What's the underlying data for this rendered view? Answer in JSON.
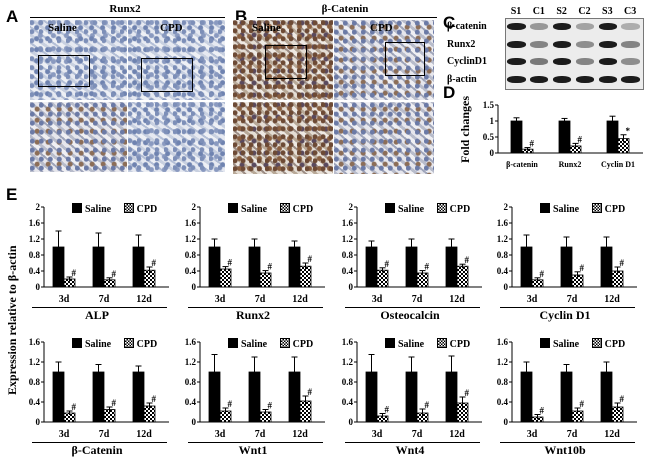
{
  "panels": {
    "A": {
      "letter": "A",
      "title": "Runx2",
      "left_label": "Saline",
      "right_label": "CPD"
    },
    "B": {
      "letter": "B",
      "title": "β-Catenin",
      "left_label": "Saline",
      "right_label": "CPD"
    },
    "C": {
      "letter": "C",
      "lanes": [
        "S1",
        "C1",
        "S2",
        "C2",
        "S3",
        "C3"
      ],
      "rows": [
        {
          "label": "β-catenin"
        },
        {
          "label": "Runx2"
        },
        {
          "label": "CyclinD1"
        },
        {
          "label": "β-actin"
        }
      ]
    },
    "D": {
      "letter": "D",
      "ylabel": "Fold changes"
    },
    "E": {
      "letter": "E",
      "ylabel": "Expression relative to β-actin"
    }
  },
  "legend": {
    "saline": "Saline",
    "cpd": "CPD"
  },
  "chart_data": [
    {
      "id": "D",
      "type": "bar",
      "categories": [
        "β-catenin",
        "Runx2",
        "Cyclin D1"
      ],
      "ylim": [
        0,
        1.5
      ],
      "yticks": [
        "0",
        "0.5",
        "1",
        "1.5"
      ],
      "ylabel": "Fold changes",
      "series": [
        {
          "name": "Saline",
          "values": [
            1.0,
            1.0,
            1.0
          ],
          "err": [
            0.1,
            0.08,
            0.15
          ]
        },
        {
          "name": "CPD",
          "values": [
            0.12,
            0.22,
            0.45
          ],
          "err": [
            0.05,
            0.08,
            0.12
          ]
        }
      ],
      "marks": [
        "#",
        "#",
        "*"
      ]
    },
    {
      "id": "ALP",
      "type": "bar",
      "title": "ALP",
      "categories": [
        "3d",
        "7d",
        "12d"
      ],
      "ylim": [
        0,
        2
      ],
      "yticks": [
        "0",
        "0.4",
        "0.8",
        "1.2",
        "1.6",
        "2"
      ],
      "series": [
        {
          "name": "Saline",
          "values": [
            1.0,
            1.0,
            1.0
          ],
          "err": [
            0.4,
            0.35,
            0.3
          ]
        },
        {
          "name": "CPD",
          "values": [
            0.2,
            0.18,
            0.42
          ],
          "err": [
            0.05,
            0.05,
            0.08
          ]
        }
      ],
      "marks": [
        "#",
        "#",
        "#"
      ]
    },
    {
      "id": "Runx2",
      "type": "bar",
      "title": "Runx2",
      "categories": [
        "3d",
        "7d",
        "12d"
      ],
      "ylim": [
        0,
        2
      ],
      "yticks": [
        "0",
        "0.4",
        "0.8",
        "1.2",
        "1.6",
        "2"
      ],
      "series": [
        {
          "name": "Saline",
          "values": [
            1.0,
            1.0,
            1.0
          ],
          "err": [
            0.2,
            0.2,
            0.15
          ]
        },
        {
          "name": "CPD",
          "values": [
            0.45,
            0.35,
            0.52
          ],
          "err": [
            0.06,
            0.06,
            0.08
          ]
        }
      ],
      "marks": [
        "#",
        "#",
        "#"
      ]
    },
    {
      "id": "Osteocalcin",
      "type": "bar",
      "title": "Osteocalcin",
      "categories": [
        "3d",
        "7d",
        "12d"
      ],
      "ylim": [
        0,
        2
      ],
      "yticks": [
        "0",
        "0.4",
        "0.8",
        "1.2",
        "1.6",
        "2"
      ],
      "series": [
        {
          "name": "Saline",
          "values": [
            1.0,
            1.0,
            1.0
          ],
          "err": [
            0.15,
            0.2,
            0.2
          ]
        },
        {
          "name": "CPD",
          "values": [
            0.42,
            0.35,
            0.52
          ],
          "err": [
            0.06,
            0.06,
            0.05
          ]
        }
      ],
      "marks": [
        "#",
        "#",
        "#"
      ]
    },
    {
      "id": "CyclinD1",
      "type": "bar",
      "title": "Cyclin D1",
      "categories": [
        "3d",
        "7d",
        "12d"
      ],
      "ylim": [
        0,
        2
      ],
      "yticks": [
        "0",
        "0.4",
        "0.8",
        "1.2",
        "1.6",
        "2"
      ],
      "series": [
        {
          "name": "Saline",
          "values": [
            1.0,
            1.0,
            1.0
          ],
          "err": [
            0.3,
            0.25,
            0.25
          ]
        },
        {
          "name": "CPD",
          "values": [
            0.18,
            0.3,
            0.4
          ],
          "err": [
            0.05,
            0.08,
            0.1
          ]
        }
      ],
      "marks": [
        "#",
        "#",
        "#"
      ]
    },
    {
      "id": "bCatenin",
      "type": "bar",
      "title": "β-Catenin",
      "categories": [
        "3d",
        "7d",
        "12d"
      ],
      "ylim": [
        0,
        1.6
      ],
      "yticks": [
        "0",
        "0.4",
        "0.8",
        "1.2",
        "1.6"
      ],
      "series": [
        {
          "name": "Saline",
          "values": [
            1.0,
            1.0,
            1.0
          ],
          "err": [
            0.2,
            0.15,
            0.12
          ]
        },
        {
          "name": "CPD",
          "values": [
            0.18,
            0.25,
            0.32
          ],
          "err": [
            0.04,
            0.05,
            0.06
          ]
        }
      ],
      "marks": [
        "#",
        "#",
        "#"
      ]
    },
    {
      "id": "Wnt1",
      "type": "bar",
      "title": "Wnt1",
      "categories": [
        "3d",
        "7d",
        "12d"
      ],
      "ylim": [
        0,
        1.6
      ],
      "yticks": [
        "0",
        "0.4",
        "0.8",
        "1.2",
        "1.6"
      ],
      "series": [
        {
          "name": "Saline",
          "values": [
            1.0,
            1.0,
            1.0
          ],
          "err": [
            0.35,
            0.3,
            0.3
          ]
        },
        {
          "name": "CPD",
          "values": [
            0.22,
            0.2,
            0.42
          ],
          "err": [
            0.06,
            0.05,
            0.1
          ]
        }
      ],
      "marks": [
        "#",
        "#",
        "#"
      ]
    },
    {
      "id": "Wnt4",
      "type": "bar",
      "title": "Wnt4",
      "categories": [
        "3d",
        "7d",
        "12d"
      ],
      "ylim": [
        0,
        1.6
      ],
      "yticks": [
        "0",
        "0.4",
        "0.8",
        "1.2",
        "1.6"
      ],
      "series": [
        {
          "name": "Saline",
          "values": [
            1.0,
            1.0,
            1.0
          ],
          "err": [
            0.35,
            0.3,
            0.32
          ]
        },
        {
          "name": "CPD",
          "values": [
            0.12,
            0.18,
            0.38
          ],
          "err": [
            0.05,
            0.08,
            0.12
          ]
        }
      ],
      "marks": [
        "#",
        "#",
        "#"
      ]
    },
    {
      "id": "Wnt10b",
      "type": "bar",
      "title": "Wnt10b",
      "categories": [
        "3d",
        "7d",
        "12d"
      ],
      "ylim": [
        0,
        1.6
      ],
      "yticks": [
        "0",
        "0.4",
        "0.8",
        "1.2",
        "1.6"
      ],
      "series": [
        {
          "name": "Saline",
          "values": [
            1.0,
            1.0,
            1.0
          ],
          "err": [
            0.2,
            0.15,
            0.2
          ]
        },
        {
          "name": "CPD",
          "values": [
            0.1,
            0.22,
            0.3
          ],
          "err": [
            0.05,
            0.06,
            0.08
          ]
        }
      ],
      "marks": [
        "#",
        "#",
        "#"
      ]
    }
  ]
}
